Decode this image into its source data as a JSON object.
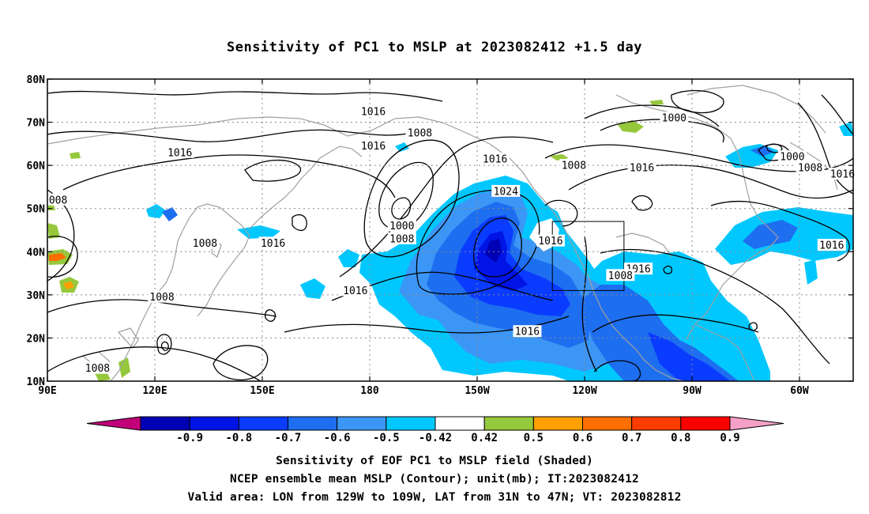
{
  "title": "Sensitivity of PC1 to MSLP at 2023082412 +1.5 day",
  "map": {
    "lon_range": [
      90,
      315
    ],
    "lat_range": [
      10,
      80
    ],
    "x_ticks": [
      {
        "lon": 90,
        "label": "90E"
      },
      {
        "lon": 120,
        "label": "120E"
      },
      {
        "lon": 150,
        "label": "150E"
      },
      {
        "lon": 180,
        "label": "180"
      },
      {
        "lon": 210,
        "label": "150W"
      },
      {
        "lon": 240,
        "label": "120W"
      },
      {
        "lon": 270,
        "label": "90W"
      },
      {
        "lon": 300,
        "label": "60W"
      }
    ],
    "y_ticks": [
      {
        "lat": 10,
        "label": "10N"
      },
      {
        "lat": 20,
        "label": "20N"
      },
      {
        "lat": 30,
        "label": "30N"
      },
      {
        "lat": 40,
        "label": "40N"
      },
      {
        "lat": 50,
        "label": "50N"
      },
      {
        "lat": 60,
        "label": "60N"
      },
      {
        "lat": 70,
        "label": "70N"
      },
      {
        "lat": 80,
        "label": "80N"
      }
    ],
    "grid": true,
    "valid_box": {
      "lon_min": 231,
      "lon_max": 251,
      "lat_min": 31,
      "lat_max": 47
    },
    "contour_labels": [
      {
        "text": "1016",
        "lon": 181,
        "lat": 72.5
      },
      {
        "text": "1016",
        "lon": 181,
        "lat": 64.5
      },
      {
        "text": "1008",
        "lon": 194,
        "lat": 67.5
      },
      {
        "text": "1016",
        "lon": 127,
        "lat": 63
      },
      {
        "text": "1000",
        "lon": 265,
        "lat": 71
      },
      {
        "text": "1016",
        "lon": 215,
        "lat": 61.5
      },
      {
        "text": "1008",
        "lon": 237,
        "lat": 60
      },
      {
        "text": "1016",
        "lon": 256,
        "lat": 59.5
      },
      {
        "text": "1000",
        "lon": 298,
        "lat": 62
      },
      {
        "text": "1008",
        "lon": 303,
        "lat": 59.5
      },
      {
        "text": "1016",
        "lon": 312,
        "lat": 58
      },
      {
        "text": "1024",
        "lon": 218,
        "lat": 54
      },
      {
        "text": "1000",
        "lon": 189,
        "lat": 46
      },
      {
        "text": "1008",
        "lon": 189,
        "lat": 43
      },
      {
        "text": "1016",
        "lon": 230.5,
        "lat": 42.5
      },
      {
        "text": "1016",
        "lon": 153,
        "lat": 42
      },
      {
        "text": "1008",
        "lon": 134,
        "lat": 42
      },
      {
        "text": "1016",
        "lon": 309,
        "lat": 41.5
      },
      {
        "text": "1016",
        "lon": 255,
        "lat": 36
      },
      {
        "text": "1008",
        "lon": 250,
        "lat": 34.5
      },
      {
        "text": "1016",
        "lon": 176,
        "lat": 31
      },
      {
        "text": "1008",
        "lon": 122,
        "lat": 29.5
      },
      {
        "text": "1016",
        "lon": 224,
        "lat": 21.5
      },
      {
        "text": "1008",
        "lon": 104,
        "lat": 13
      },
      {
        "text": "008",
        "lon": 93,
        "lat": 52
      }
    ]
  },
  "colorbar": {
    "colors": [
      "#c2007a",
      "#0000b4",
      "#0014e6",
      "#0a3cff",
      "#1e6ef0",
      "#3c96f5",
      "#00c8ff",
      "#ffffff",
      "#96c83c",
      "#ffa000",
      "#ff6e00",
      "#ff3c00",
      "#ff0000",
      "#f5a0c8"
    ],
    "labels": [
      "-0.9",
      "-0.8",
      "-0.7",
      "-0.6",
      "-0.5",
      "-0.42",
      "0.42",
      "0.5",
      "0.6",
      "0.7",
      "0.8",
      "0.9"
    ]
  },
  "captions": {
    "line1": "Sensitivity of EOF PC1 to MSLP field (Shaded)",
    "line2": "NCEP ensemble mean MSLP (Contour); unit(mb); IT:2023082412",
    "line3": "Valid area: LON from 129W to 109W, LAT from 31N to 47N; VT: 2023082812"
  }
}
